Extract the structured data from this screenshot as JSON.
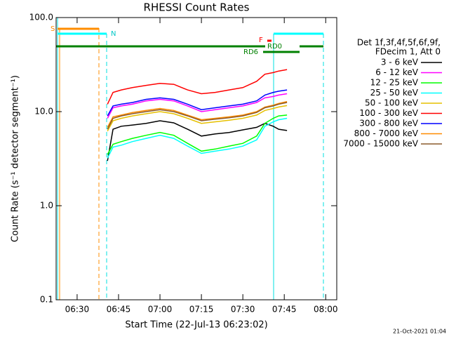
{
  "chart_data": {
    "type": "line",
    "title": "RHESSI Count Rates",
    "xlabel": "Start Time (22-Jul-13 06:23:02)",
    "ylabel": "Count Rate (s⁻¹ detector segment⁻¹)",
    "log_y": true,
    "xlim": [
      382.4,
      484
    ],
    "ylim": [
      0.1,
      100
    ],
    "xticks": [
      {
        "value": 390,
        "label": "06:30"
      },
      {
        "value": 405,
        "label": "06:45"
      },
      {
        "value": 420,
        "label": "07:00"
      },
      {
        "value": 435,
        "label": "07:15"
      },
      {
        "value": 450,
        "label": "07:30"
      },
      {
        "value": 465,
        "label": "07:45"
      },
      {
        "value": 480,
        "label": "08:00"
      }
    ],
    "yticks": [
      {
        "value": 100,
        "label": "100.0"
      },
      {
        "value": 10,
        "label": "10.0"
      },
      {
        "value": 1,
        "label": "1.0"
      },
      0.1
    ],
    "legend_header": [
      "Det 1f,3f,4f,5f,6f,9f,",
      "FDecim 1, Att 0"
    ],
    "x": [
      401,
      403,
      406,
      410,
      415,
      420,
      425,
      430,
      435,
      440,
      445,
      450,
      455,
      458,
      461,
      463,
      466
    ],
    "series": [
      {
        "name": "3 - 6 keV",
        "color": "#000000",
        "values": [
          3,
          6.5,
          7,
          7.2,
          7.5,
          8,
          7.6,
          6.5,
          5.5,
          5.8,
          6,
          6.4,
          6.8,
          7.5,
          7,
          6.5,
          6.3
        ]
      },
      {
        "name": "6 - 12 keV",
        "color": "#ff00ff",
        "values": [
          8.5,
          11,
          11.5,
          12,
          13,
          13.5,
          13,
          11.5,
          10,
          10.5,
          11,
          11.5,
          12.5,
          14,
          14.5,
          15,
          15.5
        ]
      },
      {
        "name": "12 - 25 keV",
        "color": "#00ff00",
        "values": [
          3.5,
          4.5,
          4.8,
          5.2,
          5.6,
          6,
          5.6,
          4.6,
          3.8,
          4,
          4.3,
          4.6,
          5.5,
          7.5,
          8.5,
          9,
          9.2
        ]
      },
      {
        "name": "25 - 50 keV",
        "color": "#00ffff",
        "values": [
          3.2,
          4.2,
          4.4,
          4.8,
          5.2,
          5.6,
          5.2,
          4.3,
          3.6,
          3.8,
          4,
          4.3,
          5,
          7,
          7.8,
          8.2,
          8.5
        ]
      },
      {
        "name": "50 - 100 keV",
        "color": "#e6c000",
        "values": [
          6.2,
          8,
          8.5,
          9,
          9.5,
          10,
          9.5,
          8.5,
          7.5,
          7.8,
          8.1,
          8.5,
          9.2,
          10.3,
          10.8,
          11.2,
          11.6
        ]
      },
      {
        "name": "100 - 300 keV",
        "color": "#ff0000",
        "values": [
          12,
          16,
          17,
          18,
          19,
          20,
          19.5,
          17,
          15.5,
          16,
          17,
          18,
          21,
          25,
          26,
          27,
          28
        ]
      },
      {
        "name": "300 - 800 keV",
        "color": "#0000ff",
        "values": [
          9,
          11.5,
          12,
          12.5,
          13.5,
          14,
          13.5,
          12,
          10.5,
          11,
          11.5,
          12,
          13,
          15,
          16,
          16.5,
          17
        ]
      },
      {
        "name": "800 - 7000 keV",
        "color": "#ff8c00",
        "values": [
          6.8,
          8.8,
          9.2,
          9.8,
          10.3,
          10.8,
          10.3,
          9.2,
          8.2,
          8.5,
          8.8,
          9.2,
          10,
          11.2,
          11.7,
          12.2,
          12.8
        ]
      },
      {
        "name": "7000 - 15000 keV",
        "color": "#8b5a2b",
        "values": [
          6.5,
          8.5,
          9,
          9.5,
          10,
          10.5,
          10,
          9,
          8,
          8.3,
          8.6,
          9,
          9.8,
          11,
          11.5,
          12,
          12.5
        ]
      }
    ],
    "annotations": [
      "S",
      "N",
      "F",
      "RD0",
      "RD6"
    ],
    "timestamp": "21-Oct-2021 01:04"
  }
}
